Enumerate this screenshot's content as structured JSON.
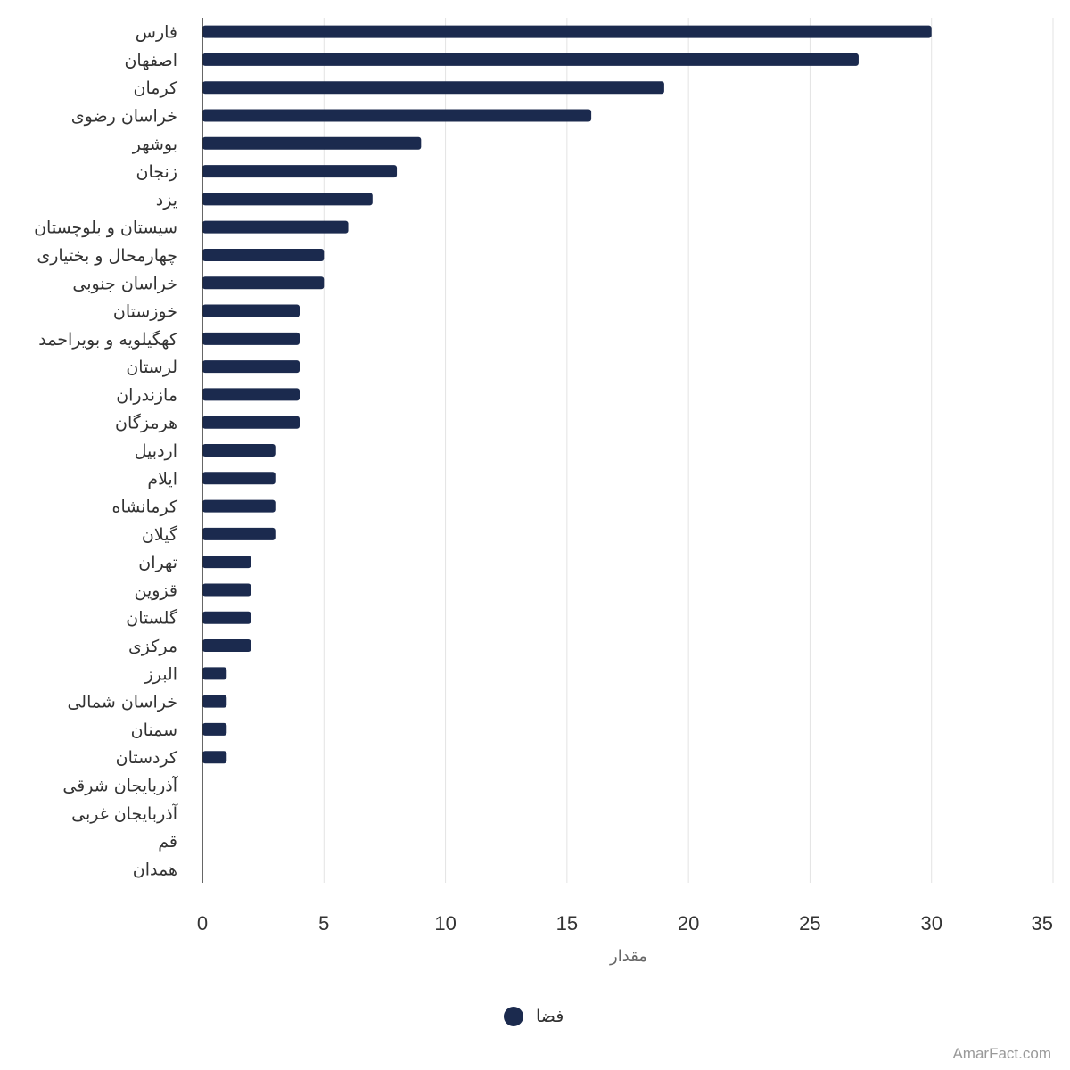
{
  "chart_data": {
    "type": "bar",
    "orientation": "horizontal",
    "categories": [
      "فارس",
      "اصفهان",
      "کرمان",
      "خراسان رضوی",
      "بوشهر",
      "زنجان",
      "یزد",
      "سیستان و بلوچستان",
      "چهارمحال و بختیاری",
      "خراسان جنوبی",
      "خوزستان",
      "کهگیلویه و بویراحمد",
      "لرستان",
      "مازندران",
      "هرمزگان",
      "اردبیل",
      "ایلام",
      "کرمانشاه",
      "گیلان",
      "تهران",
      "قزوین",
      "گلستان",
      "مرکزی",
      "البرز",
      "خراسان شمالی",
      "سمنان",
      "کردستان",
      "آذربایجان شرقی",
      "آذربایجان غربی",
      "قم",
      "همدان"
    ],
    "series": [
      {
        "name": "فضا",
        "color": "#1b2a4e",
        "values": [
          30,
          27,
          19,
          16,
          9,
          8,
          7,
          6,
          5,
          5,
          4,
          4,
          4,
          4,
          4,
          3,
          3,
          3,
          3,
          2,
          2,
          2,
          2,
          1,
          1,
          1,
          1,
          0,
          0,
          0,
          0
        ]
      }
    ],
    "xlim": [
      0,
      35
    ],
    "xticks": [
      "0",
      "5",
      "10",
      "15",
      "20",
      "25",
      "30",
      "35"
    ],
    "xlabel": "مقدار",
    "grid": true,
    "legend_position": "bottom-center"
  },
  "credit": "AmarFact.com"
}
